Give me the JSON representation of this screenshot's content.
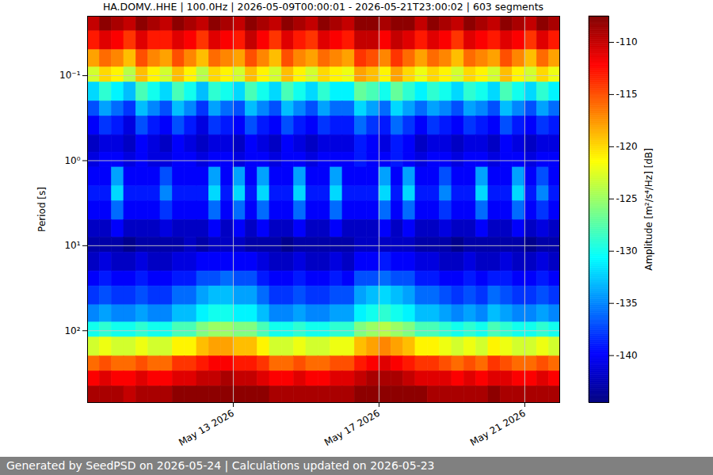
{
  "chart_data": {
    "type": "heatmap",
    "title": "HA.DOMV..HHE | 100.0Hz | 2026-05-09T00:00:01 - 2026-05-21T23:00:02 | 603 segments",
    "caption": "Generated by SeedPSD on 2026-05-24 | Calculations updated on 2026-05-23",
    "y_label": "Period [s]",
    "log": "y",
    "grid": true,
    "xlim": [
      "2026-05-09T00:00:01Z",
      "2026-05-21T23:00:02Z"
    ],
    "xticks": [
      {
        "value": "2026-05-13T00:00:00Z",
        "label": "May 13 2026"
      },
      {
        "value": "2026-05-17T00:00:00Z",
        "label": "May 17 2026"
      },
      {
        "value": "2026-05-21T00:00:00Z",
        "label": "May 21 2026"
      }
    ],
    "ylim": [
      0.02,
      700
    ],
    "yticks": [
      {
        "value": 0.1,
        "label": "10⁻¹"
      },
      {
        "value": 1,
        "label": "10⁰"
      },
      {
        "value": 10,
        "label": "10¹"
      },
      {
        "value": 100,
        "label": "10²"
      }
    ],
    "x_edges": [
      "2026-05-09T00:00:01Z",
      "2026-05-09T08:00:00Z",
      "2026-05-09T16:00:00Z",
      "2026-05-10T00:00:00Z",
      "2026-05-10T08:00:00Z",
      "2026-05-10T16:00:00Z",
      "2026-05-11T00:00:00Z",
      "2026-05-11T08:00:00Z",
      "2026-05-11T16:00:00Z",
      "2026-05-12T00:00:00Z",
      "2026-05-12T08:00:00Z",
      "2026-05-12T16:00:00Z",
      "2026-05-13T00:00:00Z",
      "2026-05-13T08:00:00Z",
      "2026-05-13T16:00:00Z",
      "2026-05-14T00:00:00Z",
      "2026-05-14T08:00:00Z",
      "2026-05-14T16:00:00Z",
      "2026-05-15T00:00:00Z",
      "2026-05-15T08:00:00Z",
      "2026-05-15T16:00:00Z",
      "2026-05-16T00:00:00Z",
      "2026-05-16T08:00:00Z",
      "2026-05-16T16:00:00Z",
      "2026-05-17T00:00:00Z",
      "2026-05-17T08:00:00Z",
      "2026-05-17T16:00:00Z",
      "2026-05-18T00:00:00Z",
      "2026-05-18T08:00:00Z",
      "2026-05-18T16:00:00Z",
      "2026-05-19T00:00:00Z",
      "2026-05-19T08:00:00Z",
      "2026-05-19T16:00:00Z",
      "2026-05-20T00:00:00Z",
      "2026-05-20T08:00:00Z",
      "2026-05-20T16:00:00Z",
      "2026-05-21T00:00:00Z",
      "2026-05-21T08:00:00Z",
      "2026-05-21T16:00:00Z",
      "2026-05-21T23:00:02Z"
    ],
    "period_edges": [
      0.02,
      0.03,
      0.05,
      0.08,
      0.12,
      0.2,
      0.3,
      0.5,
      0.8,
      1.2,
      2,
      3,
      5,
      8,
      12,
      20,
      30,
      50,
      80,
      120,
      200,
      300,
      450,
      700
    ],
    "cells": [
      [
        -110,
        -108,
        -109,
        -110,
        -108,
        -109,
        -110,
        -108,
        -109,
        -110,
        -108,
        -109,
        -110,
        -108,
        -109,
        -110,
        -108,
        -109,
        -110,
        -108,
        -109,
        -110,
        -108,
        -108,
        -109,
        -108,
        -108,
        -110,
        -108,
        -109,
        -110,
        -108,
        -109,
        -110,
        -108,
        -109,
        -110,
        -108,
        -109
      ],
      [
        -113,
        -111,
        -112,
        -114,
        -111,
        -113,
        -113,
        -111,
        -112,
        -114,
        -111,
        -112,
        -113,
        -110,
        -112,
        -114,
        -111,
        -113,
        -114,
        -111,
        -112,
        -113,
        -110,
        -110,
        -112,
        -110,
        -111,
        -113,
        -111,
        -112,
        -114,
        -111,
        -112,
        -113,
        -111,
        -112,
        -114,
        -111,
        -113
      ],
      [
        -118,
        -116,
        -117,
        -119,
        -115,
        -117,
        -118,
        -115,
        -117,
        -119,
        -116,
        -117,
        -118,
        -115,
        -117,
        -119,
        -115,
        -117,
        -118,
        -116,
        -117,
        -118,
        -114,
        -115,
        -117,
        -114,
        -116,
        -118,
        -116,
        -117,
        -119,
        -116,
        -117,
        -118,
        -115,
        -117,
        -119,
        -116,
        -118
      ],
      [
        -123,
        -120,
        -121,
        -124,
        -119,
        -121,
        -123,
        -119,
        -121,
        -124,
        -120,
        -121,
        -123,
        -119,
        -121,
        -123,
        -119,
        -121,
        -123,
        -120,
        -121,
        -122,
        -118,
        -119,
        -121,
        -118,
        -120,
        -122,
        -120,
        -121,
        -123,
        -120,
        -121,
        -123,
        -119,
        -121,
        -123,
        -120,
        -122
      ],
      [
        -132,
        -129,
        -131,
        -133,
        -128,
        -130,
        -132,
        -128,
        -130,
        -133,
        -129,
        -130,
        -132,
        -128,
        -130,
        -132,
        -128,
        -130,
        -132,
        -129,
        -131,
        -131,
        -127,
        -128,
        -130,
        -127,
        -129,
        -131,
        -129,
        -130,
        -132,
        -129,
        -130,
        -132,
        -128,
        -130,
        -132,
        -129,
        -131
      ],
      [
        -137,
        -134,
        -136,
        -138,
        -133,
        -135,
        -137,
        -133,
        -135,
        -138,
        -134,
        -136,
        -137,
        -133,
        -135,
        -137,
        -133,
        -135,
        -137,
        -134,
        -136,
        -136,
        -132,
        -134,
        -136,
        -132,
        -134,
        -136,
        -134,
        -135,
        -137,
        -134,
        -135,
        -137,
        -133,
        -135,
        -137,
        -134,
        -136
      ],
      [
        -140,
        -138,
        -139,
        -141,
        -137,
        -139,
        -140,
        -137,
        -139,
        -141,
        -138,
        -139,
        -140,
        -137,
        -139,
        -140,
        -137,
        -139,
        -140,
        -138,
        -139,
        -139,
        -136,
        -138,
        -139,
        -136,
        -138,
        -140,
        -138,
        -139,
        -140,
        -138,
        -139,
        -140,
        -137,
        -139,
        -140,
        -138,
        -139
      ],
      [
        -142,
        -141,
        -141,
        -142,
        -140,
        -141,
        -142,
        -140,
        -141,
        -142,
        -141,
        -141,
        -142,
        -140,
        -141,
        -142,
        -140,
        -141,
        -142,
        -141,
        -141,
        -141,
        -139,
        -140,
        -141,
        -139,
        -140,
        -142,
        -141,
        -141,
        -142,
        -141,
        -141,
        -142,
        -140,
        -141,
        -142,
        -141,
        -141
      ],
      [
        -141,
        -140,
        -140,
        -141,
        -140,
        -141,
        -141,
        -140,
        -140,
        -141,
        -140,
        -140,
        -141,
        -140,
        -140,
        -141,
        -140,
        -140,
        -141,
        -140,
        -140,
        -140,
        -139,
        -140,
        -140,
        -139,
        -140,
        -141,
        -140,
        -140,
        -141,
        -140,
        -140,
        -141,
        -140,
        -140,
        -141,
        -140,
        -140
      ],
      [
        -140,
        -140,
        -134,
        -140,
        -140,
        -140,
        -137,
        -140,
        -140,
        -140,
        -134,
        -140,
        -134,
        -140,
        -134,
        -140,
        -140,
        -134,
        -140,
        -140,
        -134,
        -140,
        -140,
        -140,
        -134,
        -140,
        -134,
        -140,
        -140,
        -137,
        -140,
        -140,
        -134,
        -140,
        -140,
        -134,
        -140,
        -137,
        -140
      ],
      [
        -139,
        -139,
        -132,
        -139,
        -139,
        -139,
        -135,
        -139,
        -139,
        -139,
        -132,
        -139,
        -132,
        -139,
        -132,
        -139,
        -139,
        -132,
        -139,
        -139,
        -132,
        -139,
        -139,
        -139,
        -132,
        -139,
        -132,
        -139,
        -139,
        -135,
        -139,
        -139,
        -132,
        -139,
        -139,
        -132,
        -139,
        -135,
        -139
      ],
      [
        -140,
        -140,
        -136,
        -140,
        -140,
        -140,
        -138,
        -140,
        -140,
        -140,
        -136,
        -140,
        -136,
        -140,
        -136,
        -140,
        -140,
        -136,
        -140,
        -140,
        -136,
        -140,
        -140,
        -140,
        -136,
        -140,
        -136,
        -140,
        -140,
        -138,
        -140,
        -140,
        -136,
        -140,
        -140,
        -136,
        -140,
        -138,
        -140
      ],
      [
        -142,
        -142,
        -140,
        -142,
        -142,
        -142,
        -141,
        -142,
        -142,
        -142,
        -140,
        -142,
        -140,
        -142,
        -140,
        -142,
        -142,
        -140,
        -142,
        -142,
        -140,
        -142,
        -142,
        -142,
        -140,
        -142,
        -140,
        -142,
        -142,
        -141,
        -142,
        -142,
        -140,
        -142,
        -142,
        -140,
        -142,
        -141,
        -142
      ],
      [
        -143,
        -143,
        -143,
        -144,
        -143,
        -143,
        -143,
        -143,
        -142,
        -143,
        -142,
        -142,
        -142,
        -143,
        -143,
        -143,
        -144,
        -143,
        -143,
        -143,
        -143,
        -143,
        -142,
        -142,
        -142,
        -142,
        -142,
        -143,
        -143,
        -143,
        -144,
        -143,
        -143,
        -143,
        -143,
        -143,
        -144,
        -143,
        -143
      ],
      [
        -142,
        -141,
        -142,
        -142,
        -141,
        -142,
        -142,
        -141,
        -141,
        -140,
        -140,
        -140,
        -140,
        -140,
        -141,
        -142,
        -142,
        -141,
        -142,
        -142,
        -141,
        -142,
        -140,
        -140,
        -139,
        -140,
        -140,
        -141,
        -141,
        -142,
        -142,
        -141,
        -142,
        -142,
        -141,
        -142,
        -142,
        -141,
        -142
      ],
      [
        -140,
        -139,
        -140,
        -140,
        -139,
        -140,
        -140,
        -139,
        -139,
        -137,
        -137,
        -136,
        -137,
        -137,
        -139,
        -140,
        -140,
        -139,
        -140,
        -140,
        -139,
        -140,
        -137,
        -137,
        -136,
        -137,
        -137,
        -139,
        -139,
        -140,
        -140,
        -139,
        -140,
        -139,
        -139,
        -140,
        -140,
        -139,
        -140
      ],
      [
        -138,
        -137,
        -138,
        -138,
        -137,
        -138,
        -138,
        -136,
        -136,
        -134,
        -133,
        -133,
        -134,
        -134,
        -136,
        -138,
        -138,
        -137,
        -138,
        -138,
        -137,
        -137,
        -134,
        -133,
        -132,
        -133,
        -134,
        -136,
        -136,
        -137,
        -138,
        -137,
        -138,
        -136,
        -137,
        -138,
        -138,
        -137,
        -138
      ],
      [
        -135,
        -134,
        -135,
        -135,
        -134,
        -135,
        -135,
        -133,
        -133,
        -131,
        -130,
        -130,
        -131,
        -131,
        -133,
        -135,
        -135,
        -134,
        -135,
        -135,
        -134,
        -134,
        -131,
        -130,
        -129,
        -130,
        -131,
        -133,
        -133,
        -134,
        -135,
        -134,
        -135,
        -133,
        -134,
        -135,
        -135,
        -134,
        -135
      ],
      [
        -130,
        -129,
        -130,
        -130,
        -129,
        -130,
        -130,
        -128,
        -128,
        -126,
        -125,
        -125,
        -126,
        -126,
        -128,
        -130,
        -130,
        -129,
        -130,
        -130,
        -129,
        -129,
        -126,
        -125,
        -124,
        -125,
        -126,
        -128,
        -128,
        -129,
        -130,
        -129,
        -130,
        -128,
        -129,
        -130,
        -130,
        -129,
        -130
      ],
      [
        -123,
        -122,
        -123,
        -123,
        -122,
        -123,
        -123,
        -121,
        -121,
        -119,
        -118,
        -118,
        -119,
        -119,
        -121,
        -123,
        -123,
        -122,
        -123,
        -123,
        -122,
        -122,
        -119,
        -118,
        -117,
        -118,
        -119,
        -121,
        -121,
        -122,
        -123,
        -122,
        -123,
        -121,
        -122,
        -123,
        -123,
        -122,
        -123
      ],
      [
        -116,
        -115,
        -116,
        -116,
        -115,
        -116,
        -116,
        -114,
        -114,
        -113,
        -112,
        -112,
        -113,
        -113,
        -114,
        -116,
        -116,
        -115,
        -116,
        -116,
        -115,
        -115,
        -113,
        -112,
        -111,
        -112,
        -113,
        -114,
        -114,
        -115,
        -116,
        -115,
        -116,
        -114,
        -115,
        -116,
        -116,
        -115,
        -116
      ],
      [
        -112,
        -111,
        -112,
        -112,
        -111,
        -112,
        -112,
        -111,
        -111,
        -110,
        -110,
        -109,
        -110,
        -110,
        -111,
        -112,
        -112,
        -111,
        -112,
        -112,
        -111,
        -111,
        -110,
        -109,
        -109,
        -109,
        -110,
        -111,
        -111,
        -111,
        -112,
        -111,
        -112,
        -111,
        -111,
        -112,
        -112,
        -111,
        -112
      ],
      [
        -109,
        -109,
        -109,
        -110,
        -109,
        -109,
        -109,
        -108,
        -108,
        -108,
        -108,
        -108,
        -108,
        -108,
        -108,
        -109,
        -109,
        -109,
        -109,
        -109,
        -109,
        -109,
        -108,
        -108,
        -108,
        -108,
        -108,
        -108,
        -109,
        -109,
        -109,
        -109,
        -109,
        -108,
        -109,
        -109,
        -109,
        -109,
        -109
      ]
    ],
    "colorbar": {
      "label": "Amplitude [m²/s⁴/Hz] [dB]",
      "lim": [
        -144.5,
        -107.5
      ],
      "ticks": [
        -140,
        -135,
        -130,
        -125,
        -120,
        -115,
        -110
      ]
    }
  }
}
